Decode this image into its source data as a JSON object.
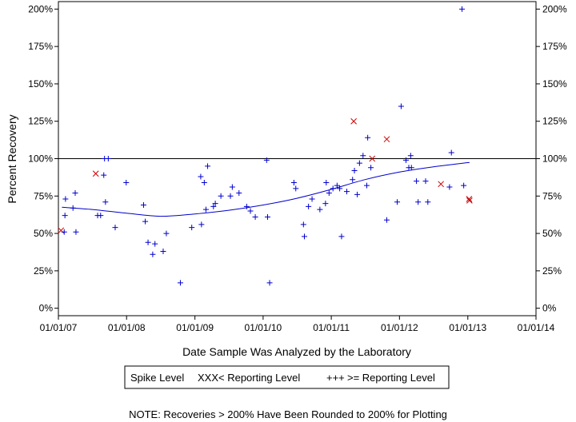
{
  "chart_data": {
    "type": "scatter",
    "xlabel": "Date Sample Was Analyzed by the Laboratory",
    "ylabel": "Percent Recovery",
    "xlim": [
      "2007-01-01",
      "2014-01-01"
    ],
    "ylim": [
      -5,
      205
    ],
    "x_ticks": [
      "01/01/07",
      "01/01/08",
      "01/01/09",
      "01/01/10",
      "01/01/11",
      "01/01/12",
      "01/01/13",
      "01/01/14"
    ],
    "x_tick_dates": [
      "2007-01-01",
      "2008-01-01",
      "2009-01-01",
      "2010-01-01",
      "2011-01-01",
      "2012-01-01",
      "2013-01-01",
      "2014-01-01"
    ],
    "y_ticks": [
      0,
      25,
      50,
      75,
      100,
      125,
      150,
      175,
      200
    ],
    "y_tick_labels": [
      "0%",
      "25%",
      "50%",
      "75%",
      "100%",
      "125%",
      "150%",
      "175%",
      "200%"
    ],
    "reference_line": 100,
    "legend": {
      "title": "Spike Level",
      "placement": "bottom-center",
      "entries": [
        {
          "symbol": "XXX",
          "label": "< Reporting Level",
          "color": "#cc0000"
        },
        {
          "symbol": "+++",
          "label": ">= Reporting Level",
          "color": "#0000cc"
        }
      ]
    },
    "note": "NOTE: Recoveries > 200% Have Been Rounded to 200% for Plotting",
    "series": [
      {
        "name": "< Reporting Level",
        "marker": "x",
        "color": "#cc0000",
        "points": [
          {
            "x": "2007-01-15",
            "y": 52
          },
          {
            "x": "2007-07-20",
            "y": 90
          },
          {
            "x": "2011-05-01",
            "y": 125
          },
          {
            "x": "2011-08-08",
            "y": 100
          },
          {
            "x": "2011-10-25",
            "y": 113
          },
          {
            "x": "2012-08-10",
            "y": 83
          },
          {
            "x": "2013-01-08",
            "y": 73
          },
          {
            "x": "2013-01-10",
            "y": 72
          }
        ]
      },
      {
        "name": ">= Reporting Level",
        "marker": "+",
        "color": "#0000cc",
        "points": [
          {
            "x": "2007-02-01",
            "y": 51
          },
          {
            "x": "2007-02-05",
            "y": 62
          },
          {
            "x": "2007-02-08",
            "y": 73
          },
          {
            "x": "2007-03-20",
            "y": 67
          },
          {
            "x": "2007-04-01",
            "y": 77
          },
          {
            "x": "2007-04-05",
            "y": 51
          },
          {
            "x": "2007-07-30",
            "y": 62
          },
          {
            "x": "2007-08-15",
            "y": 62
          },
          {
            "x": "2007-09-01",
            "y": 89
          },
          {
            "x": "2007-09-05",
            "y": 100
          },
          {
            "x": "2007-09-10",
            "y": 71
          },
          {
            "x": "2007-09-25",
            "y": 100
          },
          {
            "x": "2007-11-01",
            "y": 54
          },
          {
            "x": "2007-12-30",
            "y": 84
          },
          {
            "x": "2008-04-01",
            "y": 69
          },
          {
            "x": "2008-04-10",
            "y": 58
          },
          {
            "x": "2008-04-25",
            "y": 44
          },
          {
            "x": "2008-05-20",
            "y": 36
          },
          {
            "x": "2008-06-01",
            "y": 43
          },
          {
            "x": "2008-07-15",
            "y": 38
          },
          {
            "x": "2008-08-01",
            "y": 50
          },
          {
            "x": "2008-10-15",
            "y": 17
          },
          {
            "x": "2008-12-15",
            "y": 54
          },
          {
            "x": "2009-02-01",
            "y": 88
          },
          {
            "x": "2009-02-05",
            "y": 56
          },
          {
            "x": "2009-02-20",
            "y": 84
          },
          {
            "x": "2009-03-01",
            "y": 66
          },
          {
            "x": "2009-03-10",
            "y": 95
          },
          {
            "x": "2009-04-10",
            "y": 68
          },
          {
            "x": "2009-04-20",
            "y": 70
          },
          {
            "x": "2009-05-20",
            "y": 75
          },
          {
            "x": "2009-07-10",
            "y": 75
          },
          {
            "x": "2009-07-20",
            "y": 81
          },
          {
            "x": "2009-08-25",
            "y": 77
          },
          {
            "x": "2009-10-05",
            "y": 68
          },
          {
            "x": "2009-10-25",
            "y": 65
          },
          {
            "x": "2009-11-20",
            "y": 61
          },
          {
            "x": "2010-01-20",
            "y": 99
          },
          {
            "x": "2010-01-25",
            "y": 61
          },
          {
            "x": "2010-02-05",
            "y": 17
          },
          {
            "x": "2010-06-15",
            "y": 84
          },
          {
            "x": "2010-06-25",
            "y": 80
          },
          {
            "x": "2010-08-05",
            "y": 56
          },
          {
            "x": "2010-08-10",
            "y": 48
          },
          {
            "x": "2010-09-01",
            "y": 68
          },
          {
            "x": "2010-09-20",
            "y": 73
          },
          {
            "x": "2010-11-01",
            "y": 66
          },
          {
            "x": "2010-12-01",
            "y": 70
          },
          {
            "x": "2010-12-05",
            "y": 84
          },
          {
            "x": "2010-12-20",
            "y": 77
          },
          {
            "x": "2011-01-10",
            "y": 80
          },
          {
            "x": "2011-02-01",
            "y": 82
          },
          {
            "x": "2011-02-15",
            "y": 80
          },
          {
            "x": "2011-02-25",
            "y": 48
          },
          {
            "x": "2011-03-25",
            "y": 78
          },
          {
            "x": "2011-04-25",
            "y": 86
          },
          {
            "x": "2011-05-05",
            "y": 92
          },
          {
            "x": "2011-05-20",
            "y": 76
          },
          {
            "x": "2011-06-01",
            "y": 97
          },
          {
            "x": "2011-06-20",
            "y": 102
          },
          {
            "x": "2011-07-10",
            "y": 82
          },
          {
            "x": "2011-07-15",
            "y": 114
          },
          {
            "x": "2011-08-01",
            "y": 94
          },
          {
            "x": "2011-10-25",
            "y": 59
          },
          {
            "x": "2011-12-20",
            "y": 71
          },
          {
            "x": "2012-01-10",
            "y": 135
          },
          {
            "x": "2012-02-05",
            "y": 99
          },
          {
            "x": "2012-02-20",
            "y": 94
          },
          {
            "x": "2012-03-01",
            "y": 102
          },
          {
            "x": "2012-03-05",
            "y": 94
          },
          {
            "x": "2012-04-01",
            "y": 85
          },
          {
            "x": "2012-04-10",
            "y": 71
          },
          {
            "x": "2012-05-20",
            "y": 85
          },
          {
            "x": "2012-06-01",
            "y": 71
          },
          {
            "x": "2012-09-25",
            "y": 81
          },
          {
            "x": "2012-10-05",
            "y": 104
          },
          {
            "x": "2012-12-01",
            "y": 200
          },
          {
            "x": "2012-12-10",
            "y": 82
          }
        ]
      }
    ],
    "trend": {
      "color": "#0000cc",
      "points": [
        {
          "x": "2007-01-20",
          "y": 67.5
        },
        {
          "x": "2007-07-01",
          "y": 66
        },
        {
          "x": "2008-01-01",
          "y": 63.5
        },
        {
          "x": "2008-07-01",
          "y": 61.5
        },
        {
          "x": "2009-01-01",
          "y": 63
        },
        {
          "x": "2009-07-01",
          "y": 65.5
        },
        {
          "x": "2010-01-01",
          "y": 69
        },
        {
          "x": "2010-07-01",
          "y": 73.5
        },
        {
          "x": "2011-01-01",
          "y": 79.5
        },
        {
          "x": "2011-07-01",
          "y": 86
        },
        {
          "x": "2012-01-01",
          "y": 91
        },
        {
          "x": "2012-07-01",
          "y": 94.5
        },
        {
          "x": "2013-01-10",
          "y": 97.5
        }
      ]
    }
  }
}
